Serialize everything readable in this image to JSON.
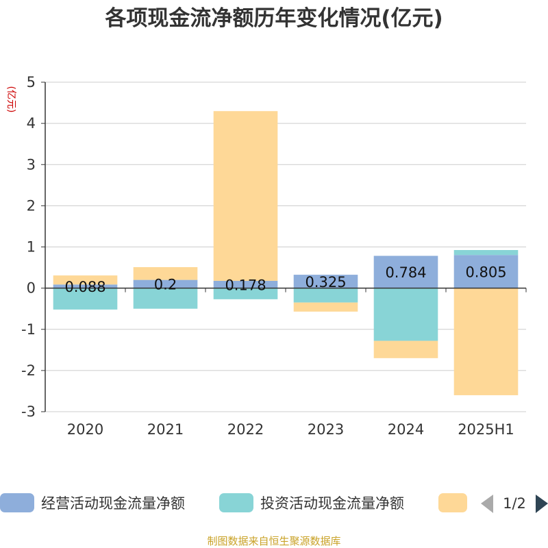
{
  "chart_data": {
    "type": "bar",
    "stacked": true,
    "title": "各项现金流净额历年变化情况(亿元)",
    "unit_label": "(亿元)",
    "categories": [
      "2020",
      "2021",
      "2022",
      "2023",
      "2024",
      "2025H1"
    ],
    "series": [
      {
        "name": "经营活动现金流量净额",
        "color": "#8eaedb",
        "values": [
          0.088,
          0.2,
          0.178,
          0.325,
          0.784,
          0.805
        ],
        "labels": [
          "0.088",
          "0.2",
          "0.178",
          "0.325",
          "0.784",
          "0.805"
        ]
      },
      {
        "name": "投资活动现金流量净额",
        "color": "#88d4d6",
        "values": [
          -0.52,
          -0.5,
          -0.27,
          -0.35,
          -1.28,
          0.12
        ]
      },
      {
        "name": "",
        "color": "#fed897",
        "values": [
          0.22,
          0.31,
          4.12,
          -0.22,
          -0.42,
          -2.6
        ]
      }
    ],
    "ylim": [
      -3,
      5
    ],
    "yticks": [
      "5",
      "4",
      "3",
      "2",
      "1",
      "0",
      "-1",
      "-2",
      "-3"
    ],
    "grid": true,
    "legend": "bottom"
  },
  "legend": {
    "page": "1/2"
  },
  "source": "制图数据来自恒生聚源数据库"
}
